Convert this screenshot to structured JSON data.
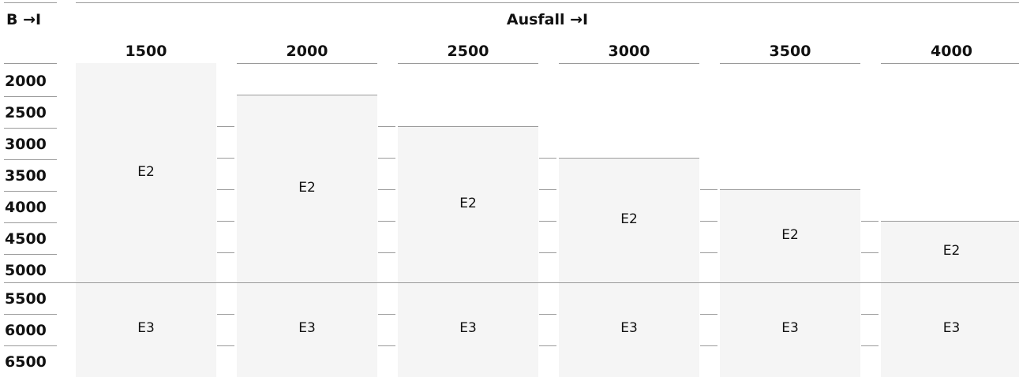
{
  "header": {
    "corner": "B →I",
    "title": "Ausfall →I"
  },
  "rows": [
    "2000",
    "2500",
    "3000",
    "3500",
    "4000",
    "4500",
    "5000",
    "5500",
    "6000",
    "6500"
  ],
  "columns": [
    {
      "label": "1500",
      "cells": [
        "E2",
        "E3"
      ]
    },
    {
      "label": "2000",
      "cells": [
        "E2",
        "E3"
      ]
    },
    {
      "label": "2500",
      "cells": [
        "E2",
        "E3"
      ]
    },
    {
      "label": "3000",
      "cells": [
        "E2",
        "E3"
      ]
    },
    {
      "label": "3500",
      "cells": [
        "E2",
        "E3"
      ]
    },
    {
      "label": "4000",
      "cells": [
        "E2",
        "E3"
      ]
    }
  ]
}
